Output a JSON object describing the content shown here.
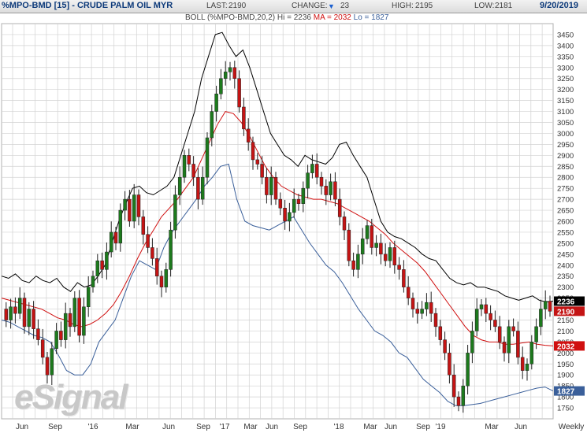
{
  "header": {
    "title": "%MPO-BMD [15] - CRUDE PALM OIL MYR",
    "last_label": "LAST:",
    "last_value": "2190",
    "change_label": "CHANGE:",
    "change_value": "23",
    "high_label": "HIGH:",
    "high_value": "2195",
    "low_label": "LOW:",
    "low_value": "2181",
    "date": "9/20/2019"
  },
  "study": {
    "label": "BOLL (%MPO-BMD,20,2)",
    "hi_label": "Hi = 2236",
    "ma_label": "MA = 2032",
    "lo_label": "Lo = 1827"
  },
  "logo": "eSignal",
  "colors": {
    "up": "#1d7a1d",
    "down": "#c41414",
    "upper_band": "#000000",
    "middle_band": "#d01010",
    "lower_band": "#3a5f9a",
    "grid": "#d2d2d2",
    "last_tag": "#c41414",
    "hi_tag": "#000000",
    "ma_tag": "#d01010",
    "lo_tag": "#3a5f9a"
  },
  "chart_data": {
    "type": "candlestick",
    "y_axis": {
      "min": 1700,
      "max": 3500,
      "step": 50,
      "side": "right"
    },
    "y_ticks": [
      "1750",
      "1800",
      "1850",
      "1900",
      "1950",
      "2000",
      "2050",
      "2100",
      "2150",
      "2200",
      "2250",
      "2300",
      "2350",
      "2400",
      "2450",
      "2500",
      "2550",
      "2600",
      "2650",
      "2700",
      "2750",
      "2800",
      "2850",
      "2900",
      "2950",
      "3000",
      "3050",
      "3100",
      "3150",
      "3200",
      "3250",
      "3300",
      "3350",
      "3400",
      "3450"
    ],
    "x_ticks": [
      "Jun",
      "Sep",
      "'16",
      "Mar",
      "Jun",
      "Sep",
      "'17",
      "Mar",
      "Jun",
      "Sep",
      "'18",
      "Mar",
      "Jun",
      "Sep",
      "'19",
      "Mar",
      "Jun",
      "Weekly"
    ],
    "last_value_tags": [
      {
        "label": "2236",
        "value": 2236,
        "kind": "hi"
      },
      {
        "label": "2190",
        "value": 2190,
        "kind": "last"
      },
      {
        "label": "2032",
        "value": 2032,
        "kind": "ma"
      },
      {
        "label": "1827",
        "value": 1827,
        "kind": "lo"
      }
    ],
    "close_path": [
      2200,
      2150,
      2210,
      2180,
      2250,
      2120,
      2200,
      2110,
      2060,
      1980,
      1900,
      2020,
      2100,
      2060,
      2180,
      2120,
      2250,
      2080,
      2210,
      2300,
      2350,
      2420,
      2380,
      2460,
      2550,
      2500,
      2650,
      2700,
      2600,
      2720,
      2620,
      2540,
      2480,
      2430,
      2350,
      2300,
      2380,
      2560,
      2720,
      2800,
      2900,
      2860,
      2800,
      2700,
      2800,
      2980,
      3100,
      3180,
      3250,
      3280,
      3300,
      3250,
      3120,
      3020,
      2960,
      2880,
      2860,
      2800,
      2720,
      2800,
      2700,
      2660,
      2600,
      2640,
      2700,
      2680,
      2750,
      2820,
      2860,
      2800,
      2760,
      2720,
      2780,
      2700,
      2620,
      2560,
      2420,
      2380,
      2450,
      2520,
      2580,
      2480,
      2500,
      2450,
      2420,
      2480,
      2400,
      2380,
      2300,
      2250,
      2200,
      2180,
      2200,
      2230,
      2180,
      2120,
      2060,
      2000,
      1900,
      1800,
      1760,
      1850,
      2000,
      2100,
      2200,
      2220,
      2180,
      2150,
      2120,
      2050,
      2000,
      2120,
      2100,
      1980,
      1920,
      1950,
      2050,
      2120,
      2200,
      2236,
      2190
    ],
    "upper_band_path": [
      2350,
      2340,
      2360,
      2330,
      2320,
      2350,
      2330,
      2320,
      2340,
      2300,
      2280,
      2320,
      2300,
      2310,
      2350,
      2400,
      2500,
      2600,
      2680,
      2750,
      2760,
      2730,
      2720,
      2740,
      2760,
      2800,
      2900,
      3000,
      3100,
      3250,
      3350,
      3450,
      3460,
      3400,
      3350,
      3380,
      3300,
      3200,
      3100,
      3000,
      2950,
      2900,
      2880,
      2850,
      2900,
      2880,
      2870,
      2860,
      2890,
      2950,
      2960,
      2900,
      2850,
      2800,
      2700,
      2600,
      2550,
      2530,
      2520,
      2500,
      2480,
      2450,
      2430,
      2420,
      2380,
      2340,
      2320,
      2310,
      2320,
      2300,
      2300,
      2290,
      2280,
      2260,
      2250,
      2240,
      2250,
      2260,
      2240,
      2232,
      2236
    ],
    "middle_band_path": [
      2250,
      2240,
      2230,
      2220,
      2210,
      2200,
      2180,
      2160,
      2150,
      2130,
      2120,
      2130,
      2150,
      2180,
      2220,
      2280,
      2350,
      2430,
      2500,
      2560,
      2620,
      2660,
      2700,
      2750,
      2800,
      2880,
      2960,
      3040,
      3100,
      3090,
      3050,
      2990,
      2920,
      2850,
      2800,
      2760,
      2740,
      2720,
      2710,
      2700,
      2700,
      2690,
      2680,
      2660,
      2640,
      2620,
      2600,
      2570,
      2540,
      2500,
      2470,
      2440,
      2410,
      2370,
      2320,
      2270,
      2220,
      2170,
      2120,
      2080,
      2060,
      2050,
      2050,
      2040,
      2040,
      2045,
      2050,
      2040,
      2035,
      2032
    ],
    "lower_band_path": [
      2150,
      2140,
      2120,
      2100,
      2080,
      2070,
      2050,
      1990,
      1920,
      1900,
      1900,
      1950,
      2050,
      2100,
      2150,
      2250,
      2350,
      2420,
      2400,
      2380,
      2480,
      2550,
      2600,
      2650,
      2700,
      2760,
      2800,
      2850,
      2860,
      2700,
      2600,
      2580,
      2570,
      2560,
      2580,
      2600,
      2620,
      2560,
      2500,
      2450,
      2400,
      2370,
      2320,
      2260,
      2200,
      2150,
      2100,
      2080,
      2050,
      2000,
      1980,
      1930,
      1880,
      1850,
      1820,
      1780,
      1760,
      1760,
      1765,
      1770,
      1780,
      1790,
      1800,
      1810,
      1820,
      1830,
      1840,
      1845,
      1827
    ]
  }
}
